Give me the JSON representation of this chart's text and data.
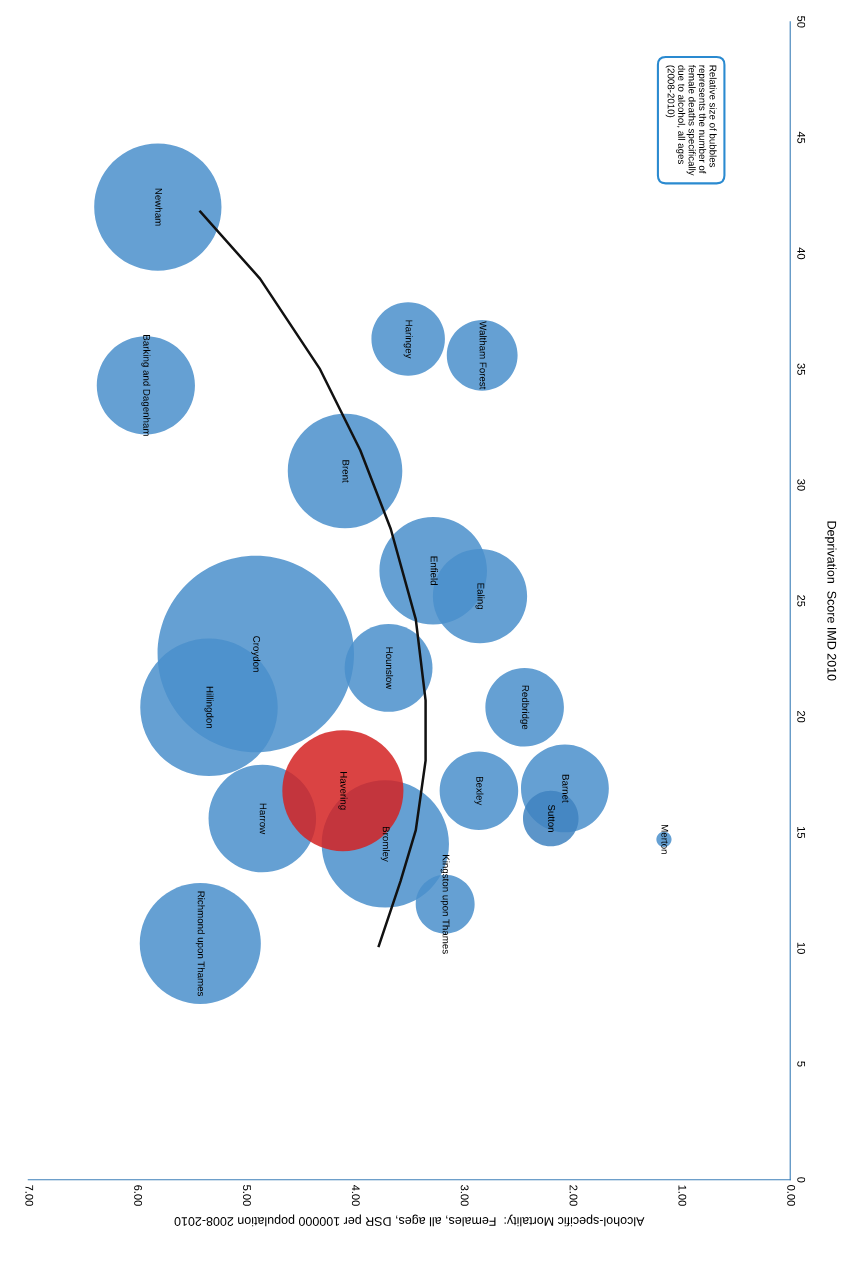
{
  "chart_data": {
    "type": "bubble",
    "orientation": "horizontal",
    "xlabel": "Alcohol-specific Mortality:  Females, all ages, DSR per 100000 population 2008-2010",
    "ylabel": "Deprivation  Score IMD 2010",
    "annotations": [
      "Relative size of bubbles\nrepresents the number of\nfemale deaths specifically\ndue to alcohol, all ages\n(2008-2010)"
    ],
    "xlim": [
      7,
      0
    ],
    "xticks": [
      {
        "value": 7,
        "label": "7.00"
      },
      {
        "value": 6,
        "label": "6.00"
      },
      {
        "value": 5,
        "label": "5.00"
      },
      {
        "value": 4,
        "label": "4.00"
      },
      {
        "value": 3,
        "label": "3.00"
      },
      {
        "value": 2,
        "label": "2.00"
      },
      {
        "value": 1,
        "label": "1.00"
      },
      {
        "value": 0,
        "label": "0.00"
      }
    ],
    "ylim": [
      0,
      50
    ],
    "yticks": [
      0,
      5,
      10,
      15,
      20,
      25,
      30,
      35,
      40,
      45,
      50
    ],
    "grid": false,
    "legend": false,
    "series": [
      {
        "name": "Croydon",
        "color": "#4a8fcb",
        "x": [
          22.7
        ],
        "values": [
          4.91
        ],
        "sizes": [
          1
        ]
      },
      {
        "name": "Hillingdon",
        "color": "#4a8fcb",
        "x": [
          20.4
        ],
        "values": [
          5.34
        ],
        "sizes": [
          0.49
        ]
      },
      {
        "name": "Newham",
        "color": "#4a8fcb",
        "x": [
          42.0
        ],
        "values": [
          5.81
        ],
        "sizes": [
          0.42
        ]
      },
      {
        "name": "Barking and Dagenham",
        "color": "#4a8fcb",
        "x": [
          34.3
        ],
        "values": [
          5.92
        ],
        "sizes": [
          0.25
        ]
      },
      {
        "name": "Haringey",
        "color": "#4a8fcb",
        "x": [
          36.3
        ],
        "values": [
          3.51
        ],
        "sizes": [
          0.14
        ]
      },
      {
        "name": "Waltham Forest",
        "color": "#4a8fcb",
        "x": [
          35.6
        ],
        "values": [
          2.83
        ],
        "sizes": [
          0.13
        ]
      },
      {
        "name": "Brent",
        "color": "#4a8fcb",
        "x": [
          30.6
        ],
        "values": [
          4.09
        ],
        "sizes": [
          0.34
        ]
      },
      {
        "name": "Enfield",
        "color": "#4a8fcb",
        "x": [
          26.3
        ],
        "values": [
          3.28
        ],
        "sizes": [
          0.3
        ]
      },
      {
        "name": "Ealing",
        "color": "#4a8fcb",
        "x": [
          25.2
        ],
        "values": [
          2.85
        ],
        "sizes": [
          0.23
        ]
      },
      {
        "name": "Hounslow",
        "color": "#4a8fcb",
        "x": [
          22.1
        ],
        "values": [
          3.69
        ],
        "sizes": [
          0.2
        ]
      },
      {
        "name": "Redbridge",
        "color": "#4a8fcb",
        "x": [
          20.4
        ],
        "values": [
          2.44
        ],
        "sizes": [
          0.16
        ]
      },
      {
        "name": "Harrow",
        "color": "#4a8fcb",
        "x": [
          15.6
        ],
        "values": [
          4.85
        ],
        "sizes": [
          0.3
        ]
      },
      {
        "name": "Bromley",
        "color": "#4a8fcb",
        "x": [
          14.5
        ],
        "values": [
          3.72
        ],
        "sizes": [
          0.42
        ]
      },
      {
        "name": "Havering",
        "color": "#d42222",
        "x": [
          16.8
        ],
        "values": [
          4.11
        ],
        "sizes": [
          0.38
        ]
      },
      {
        "name": "Bexley",
        "color": "#4a8fcb",
        "x": [
          16.8
        ],
        "values": [
          2.86
        ],
        "sizes": [
          0.16
        ]
      },
      {
        "name": "Barnet",
        "color": "#4a8fcb",
        "x": [
          16.9
        ],
        "values": [
          2.07
        ],
        "sizes": [
          0.2
        ]
      },
      {
        "name": "Sutton",
        "color": "#3f82bf",
        "x": [
          15.6
        ],
        "values": [
          2.2
        ],
        "sizes": [
          0.08
        ]
      },
      {
        "name": "Kingston upon Thames",
        "color": "#4a8fcb",
        "x": [
          11.9
        ],
        "values": [
          3.17
        ],
        "sizes": [
          0.09
        ]
      },
      {
        "name": "Richmond upon Thames",
        "color": "#4a8fcb",
        "x": [
          10.2
        ],
        "values": [
          5.42
        ],
        "sizes": [
          0.38
        ]
      },
      {
        "name": "Merton",
        "color": "#4a8fcb",
        "x": [
          14.7
        ],
        "values": [
          1.16
        ],
        "sizes": [
          0.006
        ]
      },
      {
        "type": "line",
        "color": "#111111",
        "x": [
          41.8,
          38.9,
          35.0,
          31.5,
          28.1,
          24.2,
          20.7,
          18.1,
          15.1,
          12.9,
          10.1
        ],
        "values": [
          5.42,
          4.87,
          4.32,
          3.95,
          3.67,
          3.44,
          3.35,
          3.35,
          3.44,
          3.58,
          3.78
        ]
      }
    ]
  }
}
